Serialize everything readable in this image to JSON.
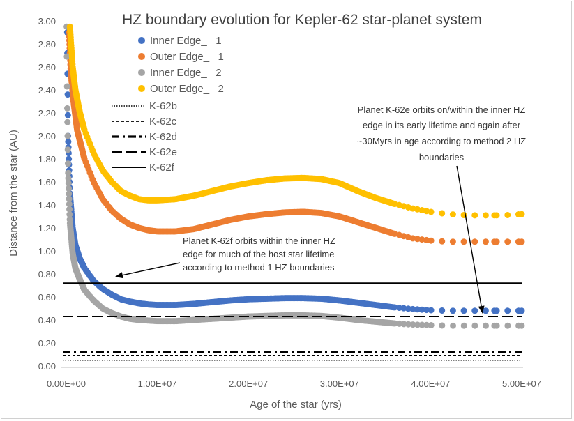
{
  "chart_data": {
    "type": "scatter",
    "title": "HZ boundary evolution for Kepler-62 star-planet system",
    "xlabel": "Age of the star (yrs)",
    "ylabel": "Distance from the star (AU)",
    "xlim": [
      0,
      50000000
    ],
    "ylim": [
      0,
      3.0
    ],
    "x_ticks": [
      "0.00E+00",
      "1.00E+07",
      "2.00E+07",
      "3.00E+07",
      "4.00E+07",
      "5.00E+07"
    ],
    "y_ticks": [
      "0.00",
      "0.20",
      "0.40",
      "0.60",
      "0.80",
      "1.00",
      "1.20",
      "1.40",
      "1.60",
      "1.80",
      "2.00",
      "2.20",
      "2.40",
      "2.60",
      "2.80",
      "3.00"
    ],
    "grid": false,
    "legend_position": "top-left",
    "series": [
      {
        "name": "Inner Edge_   1",
        "color": "#4472C4",
        "points": [
          [
            100000,
            2.9
          ],
          [
            200000,
            2.0
          ],
          [
            400000,
            1.5
          ],
          [
            700000,
            1.2
          ],
          [
            1000000,
            1.05
          ],
          [
            1500000,
            0.93
          ],
          [
            2000000,
            0.85
          ],
          [
            3000000,
            0.74
          ],
          [
            4000000,
            0.67
          ],
          [
            5000000,
            0.62
          ],
          [
            6000000,
            0.58
          ],
          [
            7000000,
            0.56
          ],
          [
            8000000,
            0.545
          ],
          [
            9000000,
            0.535
          ],
          [
            10000000,
            0.53
          ],
          [
            12000000,
            0.53
          ],
          [
            14000000,
            0.54
          ],
          [
            16000000,
            0.555
          ],
          [
            18000000,
            0.57
          ],
          [
            20000000,
            0.58
          ],
          [
            22000000,
            0.585
          ],
          [
            24000000,
            0.59
          ],
          [
            26000000,
            0.59
          ],
          [
            28000000,
            0.585
          ],
          [
            30000000,
            0.57
          ],
          [
            32000000,
            0.55
          ],
          [
            34000000,
            0.53
          ],
          [
            36000000,
            0.51
          ],
          [
            38000000,
            0.495
          ],
          [
            40000000,
            0.485
          ],
          [
            42000000,
            0.48
          ],
          [
            44000000,
            0.48
          ],
          [
            46000000,
            0.48
          ],
          [
            48000000,
            0.48
          ],
          [
            50000000,
            0.48
          ]
        ]
      },
      {
        "name": "Outer Edge_   1",
        "color": "#ED7D31",
        "points": [
          [
            300000,
            2.9
          ],
          [
            500000,
            2.55
          ],
          [
            800000,
            2.3
          ],
          [
            1200000,
            2.05
          ],
          [
            2000000,
            1.8
          ],
          [
            3000000,
            1.6
          ],
          [
            4000000,
            1.45
          ],
          [
            5000000,
            1.35
          ],
          [
            6000000,
            1.28
          ],
          [
            7000000,
            1.23
          ],
          [
            8000000,
            1.2
          ],
          [
            9000000,
            1.18
          ],
          [
            10000000,
            1.17
          ],
          [
            12000000,
            1.17
          ],
          [
            14000000,
            1.19
          ],
          [
            16000000,
            1.23
          ],
          [
            18000000,
            1.27
          ],
          [
            20000000,
            1.3
          ],
          [
            22000000,
            1.32
          ],
          [
            24000000,
            1.335
          ],
          [
            26000000,
            1.34
          ],
          [
            28000000,
            1.33
          ],
          [
            30000000,
            1.3
          ],
          [
            32000000,
            1.25
          ],
          [
            34000000,
            1.2
          ],
          [
            36000000,
            1.15
          ],
          [
            38000000,
            1.11
          ],
          [
            40000000,
            1.09
          ],
          [
            42000000,
            1.08
          ],
          [
            44000000,
            1.08
          ],
          [
            46000000,
            1.08
          ],
          [
            48000000,
            1.08
          ],
          [
            50000000,
            1.08
          ]
        ]
      },
      {
        "name": "Inner Edge_   2",
        "color": "#A5A5A5",
        "points": [
          [
            50000,
            2.95
          ],
          [
            100000,
            2.3
          ],
          [
            200000,
            1.7
          ],
          [
            400000,
            1.25
          ],
          [
            700000,
            0.98
          ],
          [
            1000000,
            0.85
          ],
          [
            1500000,
            0.75
          ],
          [
            2000000,
            0.66
          ],
          [
            3000000,
            0.57
          ],
          [
            4000000,
            0.5
          ],
          [
            5000000,
            0.46
          ],
          [
            6000000,
            0.43
          ],
          [
            7000000,
            0.41
          ],
          [
            8000000,
            0.4
          ],
          [
            10000000,
            0.39
          ],
          [
            12000000,
            0.39
          ],
          [
            14000000,
            0.4
          ],
          [
            16000000,
            0.41
          ],
          [
            18000000,
            0.42
          ],
          [
            20000000,
            0.43
          ],
          [
            22000000,
            0.435
          ],
          [
            24000000,
            0.44
          ],
          [
            26000000,
            0.44
          ],
          [
            28000000,
            0.435
          ],
          [
            30000000,
            0.42
          ],
          [
            32000000,
            0.4
          ],
          [
            34000000,
            0.385
          ],
          [
            36000000,
            0.37
          ],
          [
            38000000,
            0.36
          ],
          [
            40000000,
            0.355
          ],
          [
            42000000,
            0.35
          ],
          [
            44000000,
            0.35
          ],
          [
            46000000,
            0.35
          ],
          [
            48000000,
            0.35
          ],
          [
            50000000,
            0.35
          ]
        ]
      },
      {
        "name": "Outer Edge_   2",
        "color": "#FFC000",
        "points": [
          [
            400000,
            2.95
          ],
          [
            700000,
            2.6
          ],
          [
            1000000,
            2.4
          ],
          [
            1500000,
            2.2
          ],
          [
            2000000,
            2.05
          ],
          [
            3000000,
            1.85
          ],
          [
            4000000,
            1.7
          ],
          [
            5000000,
            1.6
          ],
          [
            6000000,
            1.52
          ],
          [
            7000000,
            1.48
          ],
          [
            8000000,
            1.45
          ],
          [
            9000000,
            1.44
          ],
          [
            10000000,
            1.44
          ],
          [
            12000000,
            1.45
          ],
          [
            14000000,
            1.48
          ],
          [
            16000000,
            1.52
          ],
          [
            18000000,
            1.56
          ],
          [
            20000000,
            1.59
          ],
          [
            22000000,
            1.615
          ],
          [
            24000000,
            1.63
          ],
          [
            26000000,
            1.635
          ],
          [
            28000000,
            1.625
          ],
          [
            30000000,
            1.59
          ],
          [
            32000000,
            1.52
          ],
          [
            34000000,
            1.46
          ],
          [
            36000000,
            1.41
          ],
          [
            38000000,
            1.37
          ],
          [
            40000000,
            1.34
          ],
          [
            42000000,
            1.32
          ],
          [
            44000000,
            1.31
          ],
          [
            46000000,
            1.31
          ],
          [
            48000000,
            1.31
          ],
          [
            50000000,
            1.32
          ]
        ]
      }
    ],
    "lines": [
      {
        "name": "K-62b",
        "y": 0.05,
        "style": "dotted"
      },
      {
        "name": "K-62c",
        "y": 0.09,
        "style": "short-dash"
      },
      {
        "name": "K-62d",
        "y": 0.12,
        "style": "dash-dot"
      },
      {
        "name": "K-62e",
        "y": 0.43,
        "style": "long-dash"
      },
      {
        "name": "K-62f",
        "y": 0.72,
        "style": "solid"
      }
    ],
    "annotations": [
      {
        "lines": [
          "Planet K-62f orbits within the inner HZ",
          "edge for much of the host star lifetime",
          "according to method 1 HZ boundaries"
        ]
      },
      {
        "lines": [
          "Planet K-62e orbits on/within the inner HZ",
          "edge in its early lifetime and again after",
          "~30Myrs in age according to method 2 HZ",
          "boundaries"
        ]
      }
    ]
  }
}
